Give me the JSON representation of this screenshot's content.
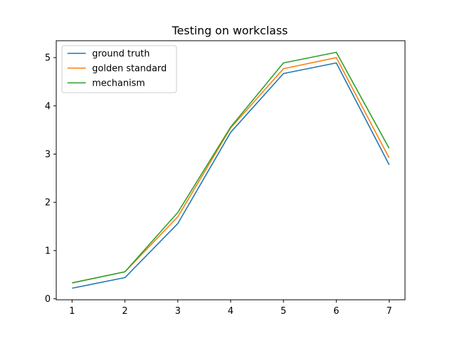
{
  "chart_data": {
    "type": "line",
    "title": "Testing on workclass",
    "xlabel": "",
    "ylabel": "",
    "x": [
      1,
      2,
      3,
      4,
      5,
      6,
      7
    ],
    "xlim": [
      0.7,
      7.3
    ],
    "ylim": [
      -0.02,
      5.35
    ],
    "xticks": [
      1,
      2,
      3,
      4,
      5,
      6,
      7
    ],
    "yticks": [
      0,
      1,
      2,
      3,
      4,
      5
    ],
    "grid": false,
    "legend_position": "top-left",
    "series": [
      {
        "name": "ground truth",
        "color": "#1f77b4",
        "values": [
          0.22,
          0.44,
          1.56,
          3.45,
          4.67,
          4.89,
          2.78
        ]
      },
      {
        "name": "golden standard",
        "color": "#ff7f0e",
        "values": [
          0.33,
          0.56,
          1.7,
          3.54,
          4.77,
          5.0,
          2.92
        ]
      },
      {
        "name": "mechanism",
        "color": "#2ca02c",
        "values": [
          0.33,
          0.56,
          1.79,
          3.56,
          4.89,
          5.11,
          3.12
        ]
      }
    ]
  }
}
